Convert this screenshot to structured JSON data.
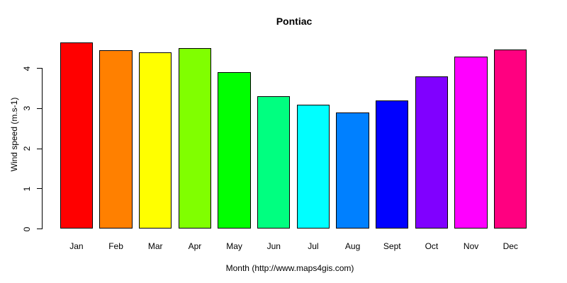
{
  "title": "Pontiac",
  "chart_data": {
    "type": "bar",
    "title": "Pontiac",
    "xlabel": "Month (http://www.maps4gis.com)",
    "ylabel": "Wind speed (m.s-1)",
    "categories": [
      "Jan",
      "Feb",
      "Mar",
      "Apr",
      "May",
      "Jun",
      "Jul",
      "Aug",
      "Sept",
      "Oct",
      "Nov",
      "Dec"
    ],
    "values": [
      4.65,
      4.45,
      4.4,
      4.5,
      3.9,
      3.3,
      3.1,
      2.9,
      3.2,
      3.8,
      4.3,
      4.47
    ],
    "bar_colors": [
      "#FF0000",
      "#FF8000",
      "#FFFF00",
      "#80FF00",
      "#00FF00",
      "#00FF80",
      "#00FFFF",
      "#0080FF",
      "#0000FF",
      "#8000FF",
      "#FF00FF",
      "#FF0080"
    ],
    "bar_border_color": "#000000",
    "yticks": [
      0,
      1,
      2,
      3,
      4
    ],
    "ytick_labels": [
      "0",
      "1",
      "2",
      "3",
      "4"
    ],
    "ylim": [
      0,
      4.65
    ],
    "grid": false,
    "legend": false,
    "background": "#FFFFFF",
    "axis_color": "#000000",
    "text_color": "#000000"
  }
}
